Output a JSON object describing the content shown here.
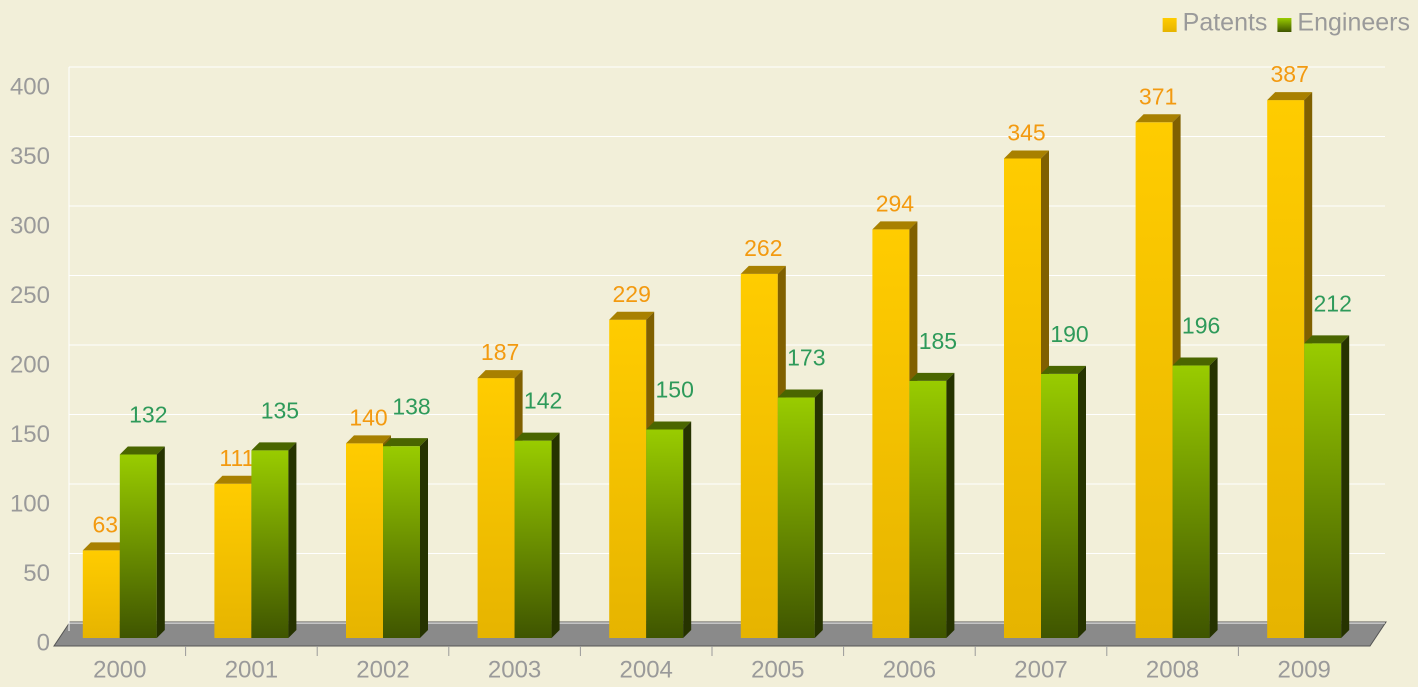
{
  "chart_data": {
    "type": "bar",
    "categories": [
      "2000",
      "2001",
      "2002",
      "2003",
      "2004",
      "2005",
      "2006",
      "2007",
      "2008",
      "2009"
    ],
    "series": [
      {
        "name": "Patents",
        "color": "#ffcc00",
        "values": [
          63,
          111,
          140,
          187,
          229,
          262,
          294,
          345,
          371,
          387
        ]
      },
      {
        "name": "Engineers",
        "color": "#88bb00",
        "values": [
          132,
          135,
          138,
          142,
          150,
          173,
          185,
          190,
          196,
          212
        ]
      }
    ],
    "ylim": [
      0,
      400
    ],
    "yticks": [
      0,
      50,
      100,
      150,
      200,
      250,
      300,
      350,
      400
    ],
    "grid": true,
    "legend": "top-right"
  }
}
